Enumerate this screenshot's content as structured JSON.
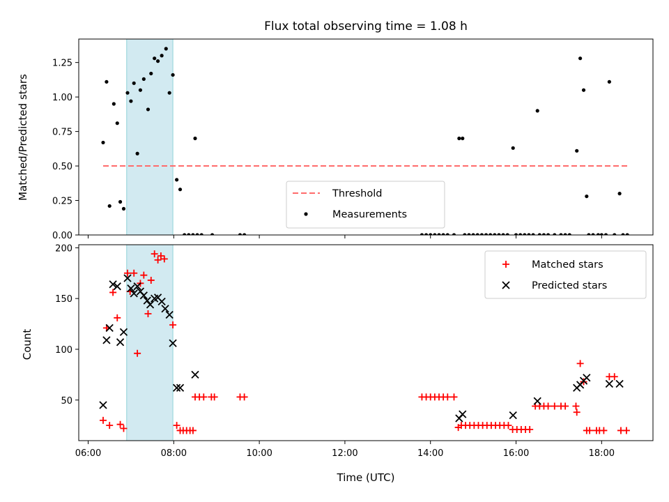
{
  "chart_data": [
    {
      "type": "scatter",
      "title": "Flux total observing time = 1.08 h",
      "xlabel": "",
      "ylabel": "Matched/Predicted stars",
      "xlim": [
        5.78,
        19.2
      ],
      "ylim": [
        0,
        1.42
      ],
      "grid": false,
      "legend_position": "lower-center",
      "x_ticks": [
        6,
        8,
        10,
        12,
        14,
        16,
        18
      ],
      "x_tick_labels": [
        "",
        "",
        "",
        "",
        "",
        "",
        ""
      ],
      "y_ticks": [
        0,
        0.25,
        0.5,
        0.75,
        1.0,
        1.25
      ],
      "y_tick_labels": [
        "0.00",
        "0.25",
        "0.50",
        "0.75",
        "1.00",
        "1.25"
      ],
      "shaded_region": {
        "x": [
          6.9,
          7.98
        ],
        "color": "#add8e6"
      },
      "threshold": {
        "name": "Threshold",
        "y": 0.5,
        "x": [
          6.35,
          18.6
        ],
        "color": "#ff6b6b"
      },
      "series": [
        {
          "name": "Measurements",
          "color": "#000000",
          "marker": "dot",
          "points": [
            [
              6.35,
              0.67
            ],
            [
              6.43,
              1.11
            ],
            [
              6.5,
              0.21
            ],
            [
              6.6,
              0.95
            ],
            [
              6.68,
              0.81
            ],
            [
              6.75,
              0.24
            ],
            [
              6.83,
              0.19
            ],
            [
              6.92,
              1.03
            ],
            [
              7.0,
              0.97
            ],
            [
              7.07,
              1.1
            ],
            [
              7.15,
              0.59
            ],
            [
              7.22,
              1.05
            ],
            [
              7.3,
              1.13
            ],
            [
              7.4,
              0.91
            ],
            [
              7.47,
              1.17
            ],
            [
              7.55,
              1.28
            ],
            [
              7.63,
              1.26
            ],
            [
              7.72,
              1.3
            ],
            [
              7.82,
              1.35
            ],
            [
              7.9,
              1.03
            ],
            [
              7.98,
              1.16
            ],
            [
              8.07,
              0.4
            ],
            [
              8.15,
              0.33
            ],
            [
              8.5,
              0.7
            ],
            [
              8.25,
              0.0
            ],
            [
              8.35,
              0.0
            ],
            [
              8.45,
              0.0
            ],
            [
              8.55,
              0.0
            ],
            [
              8.65,
              0.0
            ],
            [
              8.9,
              0.0
            ],
            [
              9.55,
              0.0
            ],
            [
              9.65,
              0.0
            ],
            [
              13.8,
              0.0
            ],
            [
              13.9,
              0.0
            ],
            [
              14.0,
              0.0
            ],
            [
              14.1,
              0.0
            ],
            [
              14.2,
              0.0
            ],
            [
              14.3,
              0.0
            ],
            [
              14.4,
              0.0
            ],
            [
              14.55,
              0.0
            ],
            [
              14.67,
              0.7
            ],
            [
              14.75,
              0.7
            ],
            [
              14.8,
              0.0
            ],
            [
              14.9,
              0.0
            ],
            [
              15.0,
              0.0
            ],
            [
              15.1,
              0.0
            ],
            [
              15.2,
              0.0
            ],
            [
              15.3,
              0.0
            ],
            [
              15.4,
              0.0
            ],
            [
              15.5,
              0.0
            ],
            [
              15.6,
              0.0
            ],
            [
              15.7,
              0.0
            ],
            [
              15.8,
              0.0
            ],
            [
              15.93,
              0.63
            ],
            [
              16.0,
              0.0
            ],
            [
              16.1,
              0.0
            ],
            [
              16.2,
              0.0
            ],
            [
              16.3,
              0.0
            ],
            [
              16.4,
              0.0
            ],
            [
              16.5,
              0.9
            ],
            [
              16.55,
              0.0
            ],
            [
              16.65,
              0.0
            ],
            [
              16.75,
              0.0
            ],
            [
              16.9,
              0.0
            ],
            [
              17.05,
              0.0
            ],
            [
              17.15,
              0.0
            ],
            [
              17.25,
              0.0
            ],
            [
              17.42,
              0.61
            ],
            [
              17.5,
              1.28
            ],
            [
              17.58,
              1.05
            ],
            [
              17.65,
              0.28
            ],
            [
              17.7,
              0.0
            ],
            [
              17.8,
              0.0
            ],
            [
              17.92,
              0.0
            ],
            [
              18.0,
              0.0
            ],
            [
              18.1,
              0.0
            ],
            [
              18.18,
              1.11
            ],
            [
              18.3,
              0.0
            ],
            [
              18.42,
              0.3
            ],
            [
              18.5,
              0.0
            ],
            [
              18.6,
              0.0
            ]
          ]
        }
      ]
    },
    {
      "type": "scatter",
      "title": "",
      "xlabel": "Time (UTC)",
      "ylabel": "Count",
      "xlim": [
        5.78,
        19.2
      ],
      "ylim": [
        10,
        203
      ],
      "grid": false,
      "legend_position": "top-right",
      "x_ticks": [
        6,
        8,
        10,
        12,
        14,
        16,
        18
      ],
      "x_tick_labels": [
        "06:00",
        "08:00",
        "10:00",
        "12:00",
        "14:00",
        "16:00",
        "18:00"
      ],
      "y_ticks": [
        50,
        100,
        150,
        200
      ],
      "y_tick_labels": [
        "50",
        "100",
        "150",
        "200"
      ],
      "shaded_region": {
        "x": [
          6.9,
          7.98
        ],
        "color": "#add8e6"
      },
      "series": [
        {
          "name": "Matched stars",
          "color": "#ff0000",
          "marker": "plus",
          "points": [
            [
              6.35,
              30
            ],
            [
              6.43,
              121
            ],
            [
              6.5,
              25
            ],
            [
              6.58,
              156
            ],
            [
              6.68,
              131
            ],
            [
              6.75,
              26
            ],
            [
              6.83,
              22
            ],
            [
              6.92,
              175
            ],
            [
              6.98,
              157
            ],
            [
              7.07,
              175
            ],
            [
              7.15,
              96
            ],
            [
              7.22,
              165
            ],
            [
              7.3,
              173
            ],
            [
              7.4,
              135
            ],
            [
              7.47,
              168
            ],
            [
              7.55,
              194
            ],
            [
              7.63,
              188
            ],
            [
              7.7,
              192
            ],
            [
              7.78,
              189
            ],
            [
              7.98,
              124
            ],
            [
              8.07,
              25
            ],
            [
              8.15,
              20
            ],
            [
              8.22,
              20
            ],
            [
              8.3,
              20
            ],
            [
              8.38,
              20
            ],
            [
              8.45,
              20
            ],
            [
              8.5,
              53
            ],
            [
              8.6,
              53
            ],
            [
              8.7,
              53
            ],
            [
              8.88,
              53
            ],
            [
              8.95,
              53
            ],
            [
              9.55,
              53
            ],
            [
              9.65,
              53
            ],
            [
              13.8,
              53
            ],
            [
              13.9,
              53
            ],
            [
              14.0,
              53
            ],
            [
              14.1,
              53
            ],
            [
              14.2,
              53
            ],
            [
              14.3,
              53
            ],
            [
              14.4,
              53
            ],
            [
              14.55,
              53
            ],
            [
              14.65,
              23
            ],
            [
              14.72,
              25
            ],
            [
              14.82,
              25
            ],
            [
              14.92,
              25
            ],
            [
              15.02,
              25
            ],
            [
              15.12,
              25
            ],
            [
              15.22,
              25
            ],
            [
              15.32,
              25
            ],
            [
              15.42,
              25
            ],
            [
              15.52,
              25
            ],
            [
              15.62,
              25
            ],
            [
              15.72,
              25
            ],
            [
              15.82,
              25
            ],
            [
              15.92,
              21
            ],
            [
              16.02,
              21
            ],
            [
              16.12,
              21
            ],
            [
              16.22,
              21
            ],
            [
              16.32,
              21
            ],
            [
              16.45,
              44
            ],
            [
              16.55,
              44
            ],
            [
              16.65,
              44
            ],
            [
              16.75,
              44
            ],
            [
              16.9,
              44
            ],
            [
              17.05,
              44
            ],
            [
              17.15,
              44
            ],
            [
              17.4,
              44
            ],
            [
              17.42,
              38
            ],
            [
              17.5,
              86
            ],
            [
              17.58,
              68
            ],
            [
              17.65,
              20
            ],
            [
              17.72,
              20
            ],
            [
              17.88,
              20
            ],
            [
              17.95,
              20
            ],
            [
              18.05,
              20
            ],
            [
              18.18,
              73
            ],
            [
              18.3,
              73
            ],
            [
              18.45,
              20
            ],
            [
              18.58,
              20
            ]
          ]
        },
        {
          "name": "Predicted stars",
          "color": "#000000",
          "marker": "cross",
          "points": [
            [
              6.35,
              45
            ],
            [
              6.43,
              109
            ],
            [
              6.5,
              121
            ],
            [
              6.58,
              164
            ],
            [
              6.68,
              162
            ],
            [
              6.75,
              107
            ],
            [
              6.83,
              117
            ],
            [
              6.92,
              170
            ],
            [
              7.0,
              160
            ],
            [
              7.07,
              155
            ],
            [
              7.15,
              162
            ],
            [
              7.22,
              157
            ],
            [
              7.3,
              153
            ],
            [
              7.38,
              148
            ],
            [
              7.45,
              144
            ],
            [
              7.55,
              150
            ],
            [
              7.63,
              151
            ],
            [
              7.72,
              147
            ],
            [
              7.8,
              140
            ],
            [
              7.9,
              134
            ],
            [
              7.98,
              106
            ],
            [
              8.07,
              62
            ],
            [
              8.15,
              62
            ],
            [
              8.5,
              75
            ],
            [
              14.67,
              32
            ],
            [
              14.75,
              36
            ],
            [
              15.93,
              35
            ],
            [
              16.5,
              49
            ],
            [
              17.42,
              62
            ],
            [
              17.5,
              65
            ],
            [
              17.58,
              69
            ],
            [
              17.65,
              72
            ],
            [
              18.18,
              66
            ],
            [
              18.42,
              66
            ]
          ]
        }
      ]
    }
  ]
}
